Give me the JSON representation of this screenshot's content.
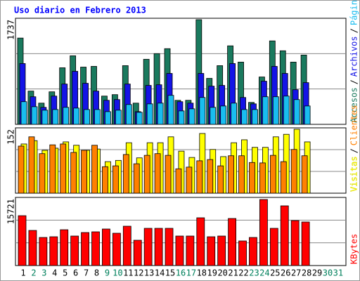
{
  "title": "Uso diario en Febrero 2013",
  "chart_data": [
    {
      "type": "bar",
      "ylim": [
        0,
        1737
      ],
      "yticks": [
        1737
      ],
      "legend_separator": "/",
      "grid": true,
      "series": [
        {
          "name": "Accesos",
          "color": "#1a7a5e",
          "values": [
            1432,
            552,
            352,
            540,
            939,
            1138,
            950,
            962,
            469,
            493,
            974,
            352,
            1080,
            1174,
            1256,
            399,
            399,
            1737,
            763,
            974,
            1303,
            1033,
            364,
            786,
            1385,
            1221,
            1033,
            1150,
            null,
            null,
            null
          ]
        },
        {
          "name": "Archivos",
          "color": "#1414e6",
          "values": [
            1009,
            458,
            282,
            469,
            669,
            880,
            681,
            552,
            399,
            411,
            669,
            211,
            646,
            657,
            845,
            376,
            352,
            845,
            634,
            646,
            1009,
            446,
            340,
            716,
            962,
            845,
            575,
            692,
            null,
            null,
            null
          ]
        },
        {
          "name": "Páginas",
          "color": "#19bdf0",
          "values": [
            376,
            293,
            235,
            246,
            282,
            270,
            246,
            246,
            211,
            235,
            329,
            200,
            340,
            352,
            481,
            223,
            258,
            446,
            282,
            305,
            352,
            246,
            246,
            458,
            458,
            469,
            411,
            305,
            null,
            null,
            null
          ]
        }
      ]
    },
    {
      "type": "bar",
      "ylim": [
        0,
        152
      ],
      "yticks": [
        152
      ],
      "legend_separator": "/",
      "grid": true,
      "series": [
        {
          "name": "Visitas",
          "color": "#ffff00",
          "values": [
            117,
            125,
            102,
            107,
            122,
            114,
            102,
            105,
            75,
            78,
            120,
            84,
            120,
            120,
            134,
            100,
            85,
            142,
            104,
            87,
            120,
            127,
            109,
            109,
            134,
            140,
            152,
            122,
            null,
            null,
            null
          ]
        },
        {
          "name": "Clientes",
          "color": "#ff8000",
          "values": [
            112,
            134,
            94,
            115,
            117,
            97,
            102,
            114,
            63,
            65,
            92,
            70,
            90,
            94,
            90,
            58,
            62,
            77,
            80,
            65,
            89,
            89,
            73,
            72,
            90,
            75,
            104,
            89,
            null,
            null,
            null
          ]
        }
      ]
    },
    {
      "type": "bar",
      "ylim": [
        0,
        15721
      ],
      "yticks": [
        15721
      ],
      "grid": true,
      "categories": [
        "1",
        "2",
        "3",
        "4",
        "5",
        "6",
        "7",
        "8",
        "9",
        "10",
        "11",
        "12",
        "13",
        "14",
        "15",
        "16",
        "17",
        "18",
        "19",
        "20",
        "21",
        "22",
        "23",
        "24",
        "25",
        "26",
        "27",
        "28",
        "29",
        "30",
        "31"
      ],
      "category_colors": [
        "#000",
        "#00805c",
        "#00805c",
        "#000",
        "#000",
        "#000",
        "#000",
        "#000",
        "#00805c",
        "#00805c",
        "#000",
        "#000",
        "#000",
        "#000",
        "#000",
        "#00805c",
        "#00805c",
        "#000",
        "#000",
        "#000",
        "#000",
        "#000",
        "#00805c",
        "#00805c",
        "#000",
        "#000",
        "#000",
        "#000",
        "#000",
        "#00805c",
        "#00805c"
      ],
      "series": [
        {
          "name": "KBytes",
          "color": "#ff0000",
          "values": [
            11749,
            8274,
            6619,
            6785,
            8440,
            6950,
            7778,
            7943,
            8605,
            7612,
            9267,
            5957,
            8770,
            8770,
            8770,
            6950,
            6950,
            11253,
            6785,
            6950,
            11087,
            5792,
            6619,
            15556,
            8770,
            14066,
            10591,
            10260,
            null,
            null,
            null
          ]
        }
      ]
    }
  ]
}
